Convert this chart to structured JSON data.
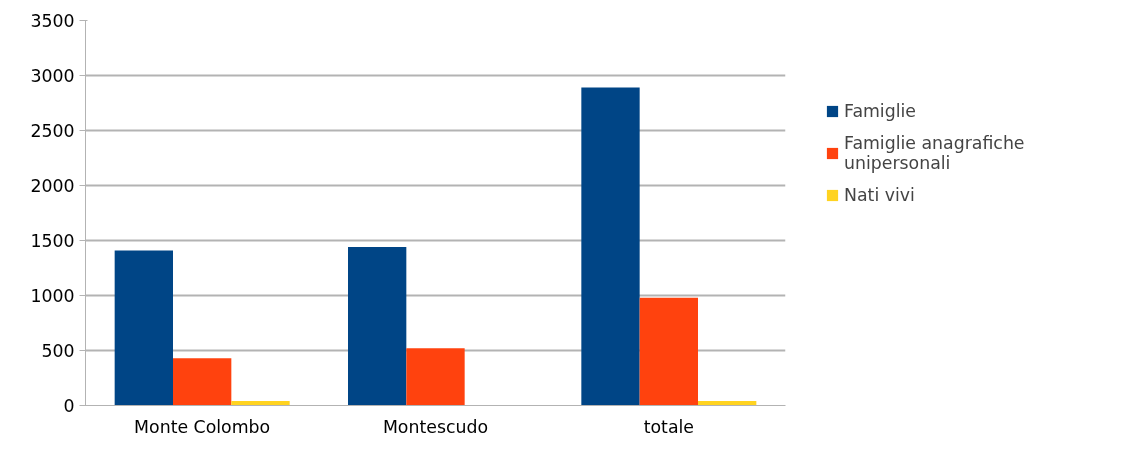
{
  "chart_data": {
    "type": "bar",
    "categories": [
      "Monte Colombo",
      "Montescudo",
      "totale"
    ],
    "series": [
      {
        "name": "Famiglie",
        "color": "#004586",
        "values": [
          1410,
          1440,
          2890
        ]
      },
      {
        "name": "Famiglie anagrafiche unipersonali",
        "color": "#ff420e",
        "values": [
          430,
          520,
          980
        ]
      },
      {
        "name": "Nati vivi",
        "color": "#ffd320",
        "values": [
          40,
          0,
          40
        ]
      }
    ],
    "ylim": [
      0,
      3500
    ],
    "yticks": [
      0,
      500,
      1000,
      1500,
      2000,
      2500,
      3000,
      3500
    ],
    "grid": "y",
    "legend": "right"
  }
}
